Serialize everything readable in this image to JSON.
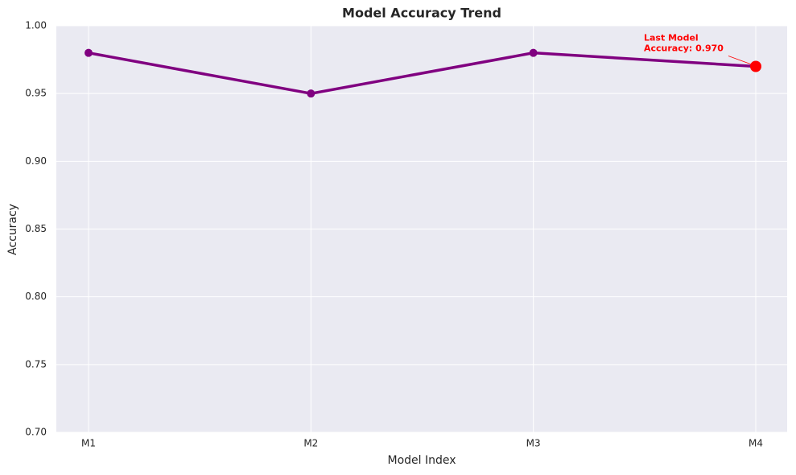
{
  "chart_data": {
    "type": "line",
    "title": "Model Accuracy Trend",
    "x_label": "Model Index",
    "y_label": "Accuracy",
    "categories": [
      "M1",
      "M2",
      "M3",
      "M4"
    ],
    "values": [
      0.98,
      0.95,
      0.98,
      0.97
    ],
    "color": "#800080",
    "highlight_color": "#ff0000",
    "annotation": [
      "Last Model",
      "Accuracy: 0.970"
    ],
    "ylim": [
      0.7,
      1.0
    ],
    "yticks": [
      {
        "value": 0.7,
        "label": "0.70"
      },
      0.75,
      {
        "value": 0.8,
        "label": "0.80"
      },
      0.85,
      {
        "value": 0.9,
        "label": "0.90"
      },
      0.95,
      {
        "value": 1.0,
        "label": "1.00"
      }
    ],
    "grid": true
  }
}
